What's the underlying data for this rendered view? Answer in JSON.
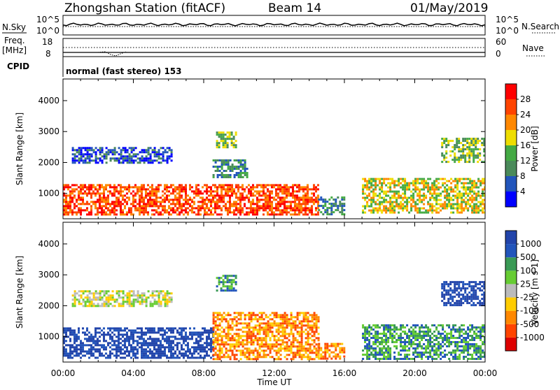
{
  "header": {
    "station": "Zhongshan Station (fitACF)",
    "beam": "Beam 14",
    "date": "01/May/2019"
  },
  "strip_labels": {
    "nsky": "N.Sky",
    "nsky_ticks": [
      "10^5",
      "10^0"
    ],
    "nsearch": "N.Search",
    "nsearch_ticks": [
      "10^5",
      "10^0"
    ],
    "freq_line1": "Freq.",
    "freq_line2": "[MHz]",
    "freq_ticks": [
      "18",
      "8"
    ],
    "nave": "Nave",
    "nave_ticks": [
      "60",
      "0"
    ],
    "cpid": "CPID",
    "cpid_text": "normal (fast stereo) 153"
  },
  "x_axis": {
    "label": "Time UT",
    "ticks": [
      "00:00",
      "04:00",
      "08:00",
      "12:00",
      "16:00",
      "20:00",
      "00:00"
    ]
  },
  "colors": {
    "power": [
      "#0000ff",
      "#2255bb",
      "#4a8a5a",
      "#44aa44",
      "#eedd00",
      "#ff8800",
      "#ff4400",
      "#ff0000"
    ],
    "velocity": [
      "#dd0000",
      "#ff4400",
      "#ff8800",
      "#ffcc00",
      "#bbbbbb",
      "#66cc33",
      "#3a9a55",
      "#2255bb",
      "#2244aa"
    ]
  },
  "chart_data": [
    {
      "type": "heatmap",
      "panel": "power",
      "ylabel": "Slant Range [km]",
      "yticks": [
        "1000",
        "2000",
        "3000",
        "4000"
      ],
      "ylim": [
        180,
        4700
      ],
      "xlim_hours": [
        0,
        24
      ],
      "colorbar_label": "Power [dB]",
      "colorbar_ticks": [
        "4",
        "8",
        "12",
        "16",
        "20",
        "24",
        "28"
      ],
      "colorbar_range": [
        0,
        32
      ],
      "echo_regions": [
        {
          "t": [
            0.0,
            14.5
          ],
          "r": [
            300,
            1300
          ],
          "v": 26
        },
        {
          "t": [
            14.5,
            16.0
          ],
          "r": [
            300,
            900
          ],
          "v": 8
        },
        {
          "t": [
            17.0,
            24.0
          ],
          "r": [
            400,
            1500
          ],
          "v": 16
        },
        {
          "t": [
            0.5,
            6.2
          ],
          "r": [
            2000,
            2500
          ],
          "v": 6
        },
        {
          "t": [
            8.5,
            10.5
          ],
          "r": [
            1500,
            2100
          ],
          "v": 10
        },
        {
          "t": [
            8.7,
            9.8
          ],
          "r": [
            2500,
            3000
          ],
          "v": 14
        },
        {
          "t": [
            21.5,
            24.0
          ],
          "r": [
            2000,
            2800
          ],
          "v": 12
        }
      ]
    },
    {
      "type": "heatmap",
      "panel": "velocity",
      "ylabel": "Slant Range [km]",
      "yticks": [
        "1000",
        "2000",
        "3000",
        "4000"
      ],
      "ylim": [
        180,
        4700
      ],
      "xlim_hours": [
        0,
        24
      ],
      "colorbar_label": "Velocity [m s-1]",
      "colorbar_ticks": [
        "1000",
        "500",
        "100",
        "25",
        "-25",
        "-100",
        "-500",
        "-1000"
      ],
      "echo_regions": [
        {
          "t": [
            0.0,
            8.5
          ],
          "r": [
            300,
            1300
          ],
          "v": 1000
        },
        {
          "t": [
            8.5,
            14.5
          ],
          "r": [
            300,
            1800
          ],
          "v": -100
        },
        {
          "t": [
            14.5,
            16.0
          ],
          "r": [
            300,
            800
          ],
          "v": -100
        },
        {
          "t": [
            17.0,
            24.0
          ],
          "r": [
            300,
            1400
          ],
          "v": 100
        },
        {
          "t": [
            0.5,
            6.2
          ],
          "r": [
            2000,
            2500
          ],
          "v": 25
        },
        {
          "t": [
            8.7,
            9.8
          ],
          "r": [
            2500,
            3000
          ],
          "v": 100
        },
        {
          "t": [
            21.5,
            24.0
          ],
          "r": [
            2000,
            2800
          ],
          "v": 1000
        }
      ]
    }
  ]
}
